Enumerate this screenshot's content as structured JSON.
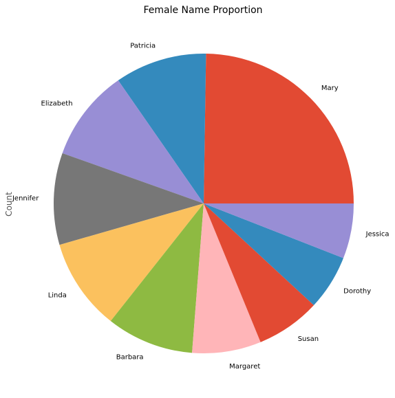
{
  "chart_data": {
    "type": "pie",
    "title": "Female Name Proportion",
    "ylabel": "Count",
    "counterclockwise": true,
    "slices": [
      {
        "label": "Mary",
        "value": 25.0,
        "color": "#E24A33"
      },
      {
        "label": "Patricia",
        "value": 10.0,
        "color": "#348ABD"
      },
      {
        "label": "Elizabeth",
        "value": 10.0,
        "color": "#988ED5"
      },
      {
        "label": "Jennifer",
        "value": 10.0,
        "color": "#777777"
      },
      {
        "label": "Linda",
        "value": 10.0,
        "color": "#FBC15E"
      },
      {
        "label": "Barbara",
        "value": 9.5,
        "color": "#8EBA42"
      },
      {
        "label": "Margaret",
        "value": 7.5,
        "color": "#FFB5B8"
      },
      {
        "label": "Susan",
        "value": 7.0,
        "color": "#E24A33"
      },
      {
        "label": "Dorothy",
        "value": 6.0,
        "color": "#348ABD"
      },
      {
        "label": "Jessica",
        "value": 6.0,
        "color": "#988ED5"
      }
    ]
  }
}
